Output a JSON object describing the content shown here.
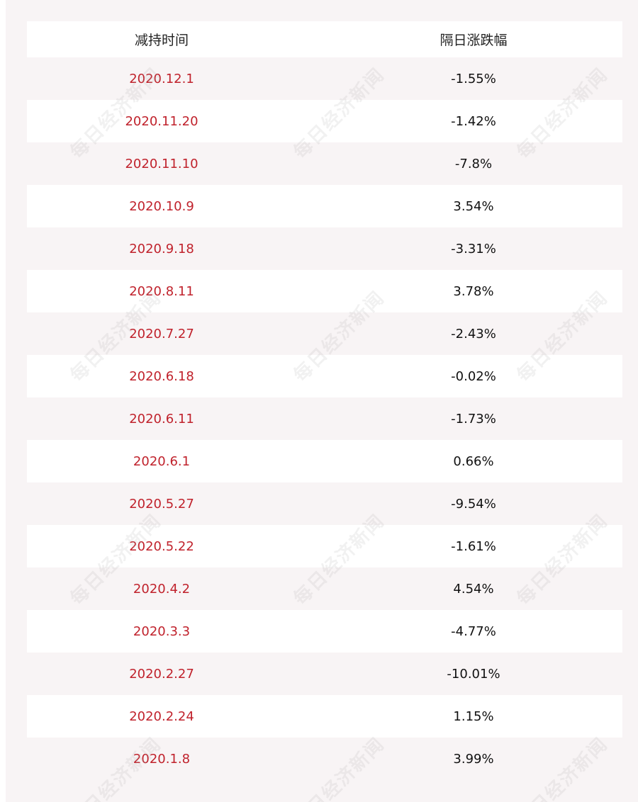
{
  "table": {
    "headers": [
      "减持时间",
      "隔日涨跌幅"
    ],
    "rows": [
      {
        "date": "2020.12.1",
        "change": "-1.55%"
      },
      {
        "date": "2020.11.20",
        "change": "-1.42%"
      },
      {
        "date": "2020.11.10",
        "change": "-7.8%"
      },
      {
        "date": "2020.10.9",
        "change": "3.54%"
      },
      {
        "date": "2020.9.18",
        "change": "-3.31%"
      },
      {
        "date": "2020.8.11",
        "change": "3.78%"
      },
      {
        "date": "2020.7.27",
        "change": "-2.43%"
      },
      {
        "date": "2020.6.18",
        "change": "-0.02%"
      },
      {
        "date": "2020.6.11",
        "change": "-1.73%"
      },
      {
        "date": "2020.6.1",
        "change": "0.66%"
      },
      {
        "date": "2020.5.27",
        "change": "-9.54%"
      },
      {
        "date": "2020.5.22",
        "change": "-1.61%"
      },
      {
        "date": "2020.4.2",
        "change": "4.54%"
      },
      {
        "date": "2020.3.3",
        "change": "-4.77%"
      },
      {
        "date": "2020.2.27",
        "change": "-10.01%"
      },
      {
        "date": "2020.2.24",
        "change": "1.15%"
      },
      {
        "date": "2020.1.8",
        "change": "3.99%"
      }
    ]
  },
  "watermark": {
    "text": "每日经济新闻"
  },
  "colors": {
    "date_text": "#c0222c",
    "value_text": "#111111",
    "row_shade": "#f8f4f5"
  }
}
